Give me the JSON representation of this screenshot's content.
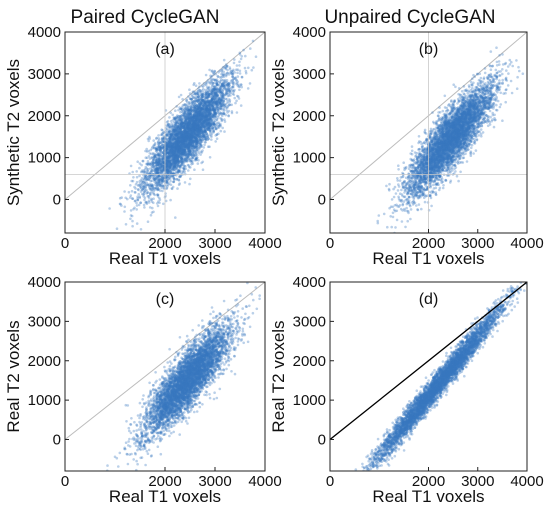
{
  "chart_data": [
    {
      "type": "scatter",
      "panel_label": "(a)",
      "title": "Paired CycleGAN",
      "xlabel": "Real T1 voxels",
      "ylabel": "Synthetic T2 voxels",
      "xlim": [
        0,
        4000
      ],
      "ylim": [
        -800,
        4000
      ],
      "x_ticks": [
        0,
        2000,
        3000,
        4000
      ],
      "y_ticks": [
        0,
        1000,
        2000,
        3000,
        4000
      ],
      "identity_line": true,
      "reference_lines": {
        "x": 2000,
        "y": 600
      },
      "color": "#3a78c0",
      "cloud": {
        "x_mean": 2450,
        "x_sd": 420,
        "y_mean": 1550,
        "y_sd": 650,
        "correlation": 0.84,
        "n_points": 5000
      }
    },
    {
      "type": "scatter",
      "panel_label": "(b)",
      "title": "Unpaired CycleGAN",
      "xlabel": "Real T1 voxels",
      "ylabel": "Synthetic T2 voxels",
      "xlim": [
        0,
        4000
      ],
      "ylim": [
        -800,
        4000
      ],
      "x_ticks": [
        0,
        2000,
        3000,
        4000
      ],
      "y_ticks": [
        0,
        1000,
        2000,
        3000,
        4000
      ],
      "identity_line": true,
      "reference_lines": {
        "x": 2000,
        "y": 600
      },
      "color": "#3a78c0",
      "cloud": {
        "x_mean": 2450,
        "x_sd": 430,
        "y_mean": 1450,
        "y_sd": 650,
        "correlation": 0.86,
        "n_points": 5000
      }
    },
    {
      "type": "scatter",
      "panel_label": "(c)",
      "title": "",
      "xlabel": "Real T1 voxels",
      "ylabel": "Real T2 voxels",
      "xlim": [
        0,
        4000
      ],
      "ylim": [
        -800,
        4000
      ],
      "x_ticks": [
        0,
        2000,
        3000,
        4000
      ],
      "y_ticks": [
        0,
        1000,
        2000,
        3000,
        4000
      ],
      "identity_line": true,
      "reference_lines": null,
      "color": "#3a78c0",
      "cloud": {
        "x_mean": 2450,
        "x_sd": 430,
        "y_mean": 1500,
        "y_sd": 680,
        "correlation": 0.85,
        "n_points": 5000
      }
    },
    {
      "type": "scatter",
      "panel_label": "(d)",
      "title": "",
      "xlabel": "Real T1 voxels",
      "ylabel": "Real T2 voxels",
      "xlim": [
        0,
        4000
      ],
      "ylim": [
        -800,
        4000
      ],
      "x_ticks": [
        0,
        2000,
        3000,
        4000
      ],
      "y_ticks": [
        0,
        1000,
        2000,
        3000,
        4000
      ],
      "identity_line": true,
      "identity_line_dark": true,
      "reference_lines": null,
      "color": "#3a78c0",
      "cloud": {
        "x_mean": 2200,
        "x_sd": 650,
        "y_mean": 1400,
        "y_sd": 1000,
        "correlation": 0.985,
        "n_points": 5000
      }
    }
  ]
}
